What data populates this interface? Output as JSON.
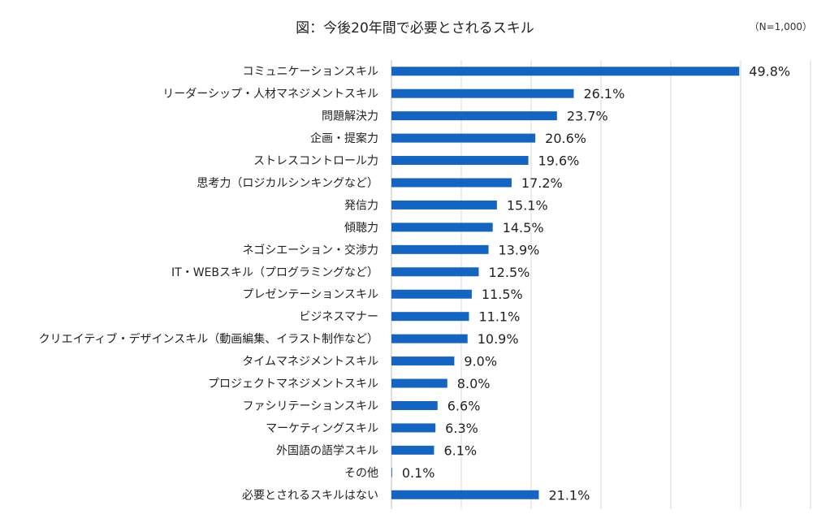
{
  "chart_data": {
    "type": "bar",
    "orientation": "horizontal",
    "title": "図：今後20年間で必要とされるスキル",
    "note": "（N=1,000）",
    "unit": "%",
    "xlim": [
      0,
      60
    ],
    "grid": true,
    "legend": "none",
    "bar_color": "#1565c0",
    "categories": [
      "コミュニケーションスキル",
      "リーダーシップ・人材マネジメントスキル",
      "問題解決力",
      "企画・提案力",
      "ストレスコントロール力",
      "思考力（ロジカルシンキングなど）",
      "発信力",
      "傾聴力",
      "ネゴシエーション・交渉力",
      "IT・WEBスキル（プログラミングなど）",
      "プレゼンテーションスキル",
      "ビジネスマナー",
      "クリエイティブ・デザインスキル（動画編集、イラスト制作など）",
      "タイムマネジメントスキル",
      "プロジェクトマネジメントスキル",
      "ファシリテーションスキル",
      "マーケティングスキル",
      "外国語の語学スキル",
      "その他",
      "必要とされるスキルはない"
    ],
    "values": [
      49.8,
      26.1,
      23.7,
      20.6,
      19.6,
      17.2,
      15.1,
      14.5,
      13.9,
      12.5,
      11.5,
      11.1,
      10.9,
      9.0,
      8.0,
      6.6,
      6.3,
      6.1,
      0.1,
      21.1
    ],
    "value_labels": [
      "49.8%",
      "26.1%",
      "23.7%",
      "20.6%",
      "19.6%",
      "17.2%",
      "15.1%",
      "14.5%",
      "13.9%",
      "12.5%",
      "11.5%",
      "11.1%",
      "10.9%",
      "9.0%",
      "8.0%",
      "6.6%",
      "6.3%",
      "6.1%",
      "0.1%",
      "21.1%"
    ]
  }
}
